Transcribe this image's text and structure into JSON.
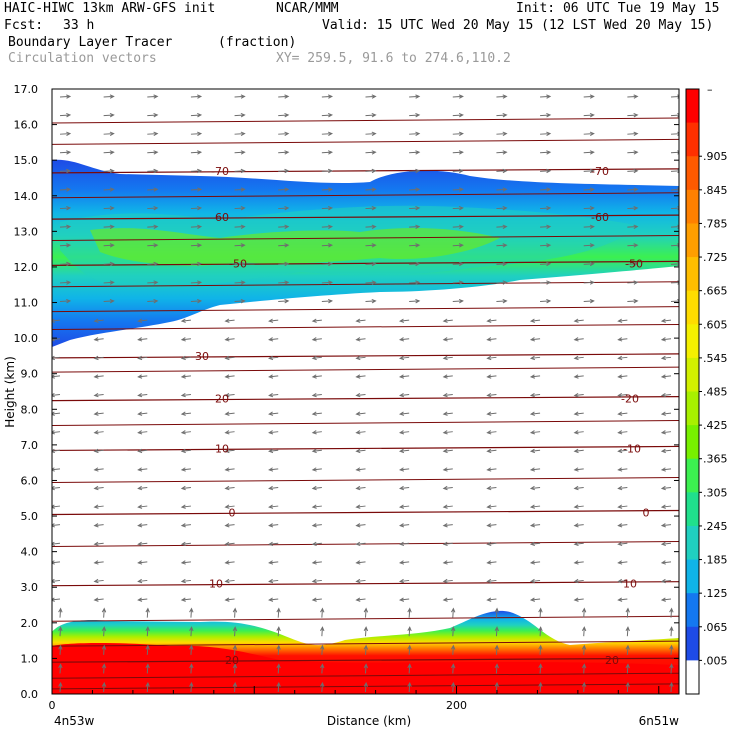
{
  "header": {
    "line1_left": "HAIC-HIWC 13km ARW-GFS init",
    "line1_mid": "NCAR/MMM",
    "line1_right": "Init: 06 UTC Tue 19 May 15",
    "fcst_label": "Fcst:",
    "fcst_value": "33 h",
    "valid": "Valid: 15 UTC Wed 20 May 15 (12 LST Wed 20 May 15)",
    "field_name": "Boundary Layer Tracer",
    "field_units": "(fraction)",
    "vectors_label": "Circulation vectors",
    "xy_label": "XY= 259.5, 91.6 to 274.6,110.2"
  },
  "chart_data": {
    "type": "cross-section",
    "title": "Boundary Layer Tracer",
    "units": "(fraction)",
    "ylabel": "Height (km)",
    "xlabel": "Distance (km)",
    "ylim": [
      0,
      17
    ],
    "xlim": [
      0,
      310
    ],
    "y_ticks": [
      "0.0",
      "1.0",
      "2.0",
      "3.0",
      "4.0",
      "5.0",
      "6.0",
      "7.0",
      "8.0",
      "9.0",
      "10.0",
      "11.0",
      "12.0",
      "13.0",
      "14.0",
      "15.0",
      "16.0",
      "17.0"
    ],
    "x_ticks": [
      {
        "value": 0,
        "label": "0"
      },
      {
        "value": 200,
        "label": "200"
      }
    ],
    "x_end_labels": {
      "left": "4n53w",
      "right": "6n51w"
    },
    "colorbar": {
      "top_label": "–",
      "labels": [
        ".905",
        ".845",
        ".785",
        ".725",
        ".665",
        ".605",
        ".545",
        ".485",
        ".425",
        ".365",
        ".305",
        ".245",
        ".185",
        ".125",
        ".065",
        ".005"
      ],
      "colors": [
        "#ff0000",
        "#ff3000",
        "#ff5a00",
        "#ff8000",
        "#ff9e00",
        "#ffbe00",
        "#ffdc00",
        "#f5f000",
        "#d2f000",
        "#a8f000",
        "#78f000",
        "#3cf050",
        "#20e08c",
        "#20d0c0",
        "#10b4e8",
        "#1478f0",
        "#1e4be6",
        "#ffffff"
      ]
    },
    "temperature_contours": {
      "color": "#7a0a0a",
      "labels": [
        {
          "value": "-70",
          "km": 14.7
        },
        {
          "value": "-60",
          "km": 13.4
        },
        {
          "value": "-50",
          "km": 12.1
        },
        {
          "value": "-30",
          "km": 9.5
        },
        {
          "value": "-20",
          "km": 8.3
        },
        {
          "value": "-10",
          "km": 6.9
        },
        {
          "value": "0",
          "km": 5.1
        },
        {
          "value": "10",
          "km": 3.1
        },
        {
          "value": "20",
          "km": 0.95
        }
      ]
    },
    "upper_tracer_layer": {
      "base_km_left": 9.7,
      "base_km_right": 11.9,
      "top_km": 14.4
    },
    "boundary_layer": {
      "top_km": 2.0,
      "saturated_top_km": 1.2
    }
  }
}
